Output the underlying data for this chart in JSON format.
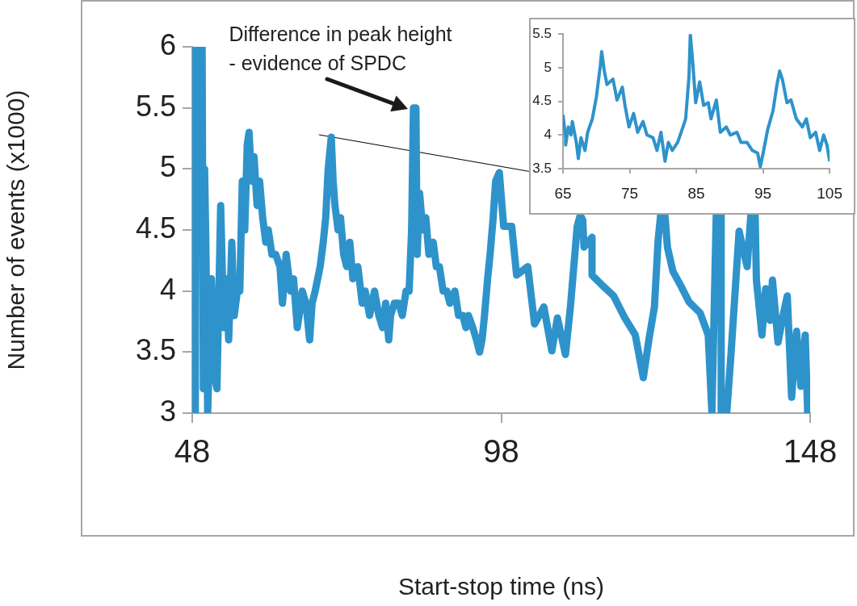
{
  "chart_data": [
    {
      "type": "line",
      "xlabel": "Start-stop time (ns)",
      "ylabel": "Number of events (x1000)",
      "annotations": [
        {
          "text": "Difference in peak height\n- evidence of SPDC",
          "x": 84,
          "y": 5.5
        }
      ],
      "series": [
        {
          "color": "#2e93cb",
          "x": [
            48.5,
            48.6,
            49.6,
            49.8,
            50.0,
            50.2,
            50.5,
            51.1,
            51.6,
            52.0,
            52.6,
            53.1,
            53.5,
            53.9,
            54.4,
            54.8,
            55.3,
            55.7,
            56.1,
            56.5,
            56.9,
            57.2,
            57.6,
            58.0,
            58.5,
            58.9,
            59.4,
            59.9,
            60.3,
            60.9,
            61.5,
            62.2,
            62.6,
            63.2,
            63.9,
            64.4,
            65.0,
            65.3,
            65.8,
            66.4,
            67.0,
            67.4,
            67.9,
            68.7,
            69.2,
            69.6,
            70.0,
            70.5,
            70.8,
            71.1,
            71.6,
            72.0,
            72.5,
            73.0,
            73.5,
            74.0,
            74.8,
            75.5,
            76.0,
            76.7,
            77.5,
            78.2,
            78.8,
            79.3,
            79.8,
            80.1,
            80.7,
            81.4,
            82.0,
            82.6,
            83.1,
            83.5,
            83.8,
            84.2,
            84.4,
            84.8,
            85.3,
            85.8,
            86.3,
            87.0,
            87.5,
            88.0,
            88.6,
            89.2,
            89.7,
            90.5,
            91.1,
            91.8,
            92.3,
            92.7,
            93.4,
            94.0,
            94.5,
            94.9,
            95.3,
            95.8,
            96.2,
            96.7,
            97.1,
            97.7,
            98.4,
            99.7,
            100.5,
            102.3,
            103.4,
            104.9,
            106.2,
            107.1,
            108.4,
            109.2,
            110.3,
            110.8,
            111.2,
            111.4,
            112.7,
            112.7,
            114.5,
            116.2,
            118.0,
            119.7,
            121.0,
            121.9,
            122.8,
            123.4,
            123.8,
            124.5,
            124.9,
            125.8,
            127.1,
            128.4,
            130.2,
            131.5,
            132.1,
            132.8,
            133.6,
            133.6,
            134.5,
            135.2,
            136.5,
            137.8,
            138.4,
            139.1,
            139.3,
            140.2,
            140.8,
            141.5,
            141.9,
            142.8,
            143.7,
            144.3,
            145.0,
            145.8,
            146.5,
            147.2,
            147.6
          ],
          "values": [
            3.0,
            6.0,
            6.0,
            3.2,
            5.0,
            4.4,
            3.0,
            4.1,
            3.3,
            3.2,
            4.7,
            3.7,
            4.1,
            3.6,
            4.4,
            3.8,
            4.0,
            4.0,
            4.9,
            4.5,
            5.2,
            5.3,
            4.9,
            5.1,
            4.7,
            4.9,
            4.6,
            4.4,
            4.5,
            4.3,
            4.3,
            4.2,
            3.9,
            4.3,
            4.0,
            4.1,
            3.7,
            3.8,
            4.0,
            3.9,
            3.6,
            3.9,
            4.0,
            4.2,
            4.4,
            4.6,
            5.0,
            5.26,
            4.9,
            4.7,
            4.5,
            4.6,
            4.3,
            4.2,
            4.4,
            4.1,
            4.2,
            3.9,
            4.0,
            3.8,
            4.0,
            3.8,
            3.7,
            3.9,
            3.6,
            3.8,
            3.9,
            3.9,
            3.8,
            4.0,
            4.0,
            4.5,
            5.5,
            5.5,
            4.3,
            4.8,
            4.5,
            4.6,
            4.3,
            4.4,
            4.2,
            4.2,
            4.0,
            4.0,
            3.9,
            4.0,
            3.8,
            3.8,
            3.7,
            3.8,
            3.7,
            3.6,
            3.5,
            3.6,
            3.8,
            4.1,
            4.3,
            4.6,
            4.9,
            4.97,
            4.53,
            4.53,
            4.13,
            4.2,
            3.73,
            3.87,
            3.51,
            3.78,
            3.48,
            3.87,
            4.53,
            4.62,
            4.58,
            4.36,
            4.44,
            4.13,
            4.04,
            3.96,
            3.78,
            3.64,
            3.29,
            3.6,
            3.87,
            4.42,
            4.62,
            4.62,
            4.36,
            4.16,
            4.04,
            3.91,
            3.82,
            3.64,
            3.0,
            4.62,
            4.62,
            3.0,
            3.0,
            3.49,
            4.49,
            4.2,
            4.62,
            4.62,
            4.09,
            3.64,
            4.02,
            3.76,
            4.09,
            3.58,
            3.82,
            3.96,
            3.13,
            3.67,
            3.22,
            3.64,
            3.0
          ]
        },
        {
          "color": "#000000",
          "x": [
            68.5,
            102.5
          ],
          "values": [
            5.28,
            4.98
          ]
        }
      ],
      "xlim": [
        48,
        148
      ],
      "xticks": [
        48,
        98,
        148
      ],
      "ylim": [
        3,
        6
      ],
      "yticks": [
        3,
        3.5,
        4,
        4.5,
        5,
        5.5,
        6
      ],
      "grid": false,
      "legend": false,
      "marker": "none",
      "line_style": "solid"
    },
    {
      "type": "line",
      "series": [
        {
          "color": "#2e93cb",
          "x": [
            65.0,
            65.4,
            65.4,
            65.8,
            66.2,
            66.4,
            67.0,
            67.3,
            67.7,
            68.3,
            68.7,
            69.4,
            70.0,
            70.6,
            70.8,
            71.2,
            71.6,
            72.5,
            73.1,
            73.9,
            74.3,
            74.9,
            75.6,
            76.2,
            77.0,
            77.6,
            78.5,
            79.1,
            79.7,
            80.3,
            80.8,
            81.4,
            82.2,
            83.0,
            83.4,
            83.9,
            84.1,
            84.5,
            84.9,
            85.5,
            86.1,
            86.8,
            87.2,
            88.0,
            88.6,
            89.5,
            90.1,
            91.1,
            91.7,
            92.6,
            93.4,
            94.2,
            94.6,
            95.1,
            95.7,
            96.5,
            97.1,
            97.5,
            97.9,
            98.6,
            99.2,
            100.0,
            100.9,
            101.5,
            102.1,
            102.9,
            103.5,
            104.1,
            104.6,
            105.0
          ],
          "values": [
            4.3,
            3.96,
            3.85,
            4.12,
            4.0,
            4.2,
            3.89,
            3.65,
            3.96,
            3.77,
            4.04,
            4.24,
            4.56,
            5.03,
            5.24,
            4.95,
            4.75,
            4.83,
            4.52,
            4.71,
            4.44,
            4.12,
            4.32,
            4.04,
            4.2,
            4.0,
            3.96,
            3.77,
            4.04,
            3.61,
            3.89,
            3.77,
            3.89,
            4.12,
            4.24,
            4.87,
            5.5,
            5.03,
            4.48,
            4.79,
            4.44,
            4.48,
            4.24,
            4.52,
            4.04,
            4.12,
            4.0,
            4.04,
            3.89,
            3.89,
            3.77,
            3.73,
            3.53,
            3.77,
            4.08,
            4.36,
            4.75,
            4.95,
            4.83,
            4.48,
            4.52,
            4.24,
            4.12,
            4.24,
            3.96,
            4.04,
            3.77,
            4.0,
            3.85,
            3.61
          ]
        }
      ],
      "xlim": [
        65,
        105
      ],
      "xticks": [
        65,
        75,
        85,
        95,
        105
      ],
      "ylim": [
        3.5,
        5.5
      ],
      "yticks": [
        3.5,
        4,
        4.5,
        5,
        5.5
      ],
      "grid": false,
      "legend": false,
      "marker": "none",
      "line_style": "solid"
    }
  ]
}
